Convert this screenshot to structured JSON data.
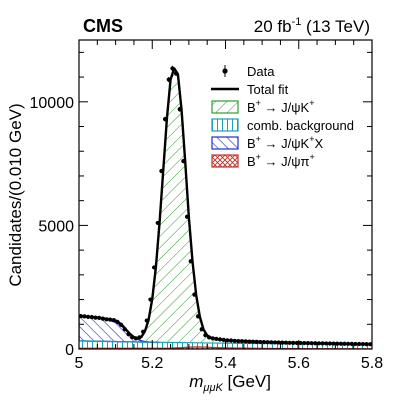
{
  "chart_data": {
    "type": "line",
    "experiment_label": "CMS",
    "luminosity_label": {
      "main": "20 fb",
      "superscript": "-1",
      "rest": " (13 TeV)"
    },
    "xlabel": {
      "var": "m",
      "subscript": "μμK",
      "unit": " [GeV]"
    },
    "ylabel": "Candidates/(0.010 GeV)",
    "xlim": [
      5.0,
      5.8
    ],
    "ylim": [
      0,
      12500
    ],
    "x_ticks": [
      5.0,
      5.2,
      5.4,
      5.6,
      5.8
    ],
    "x_tick_labels": [
      "5",
      "5.2",
      "5.4",
      "5.6",
      "5.8"
    ],
    "y_ticks": [
      0,
      5000,
      10000
    ],
    "y_tick_labels": [
      "0",
      "5000",
      "10000"
    ],
    "legend_position": "top-right",
    "legend": [
      {
        "id": "data",
        "style": "marker",
        "color": "#000000",
        "parts": [
          [
            "Data",
            ""
          ]
        ]
      },
      {
        "id": "fit",
        "style": "line",
        "color": "#000000",
        "parts": [
          [
            "Total fit",
            ""
          ]
        ]
      },
      {
        "id": "sig",
        "style": "hatch",
        "color": "#2ca02c",
        "parts": [
          [
            "B",
            ""
          ],
          [
            "+",
            "sup"
          ],
          [
            " → J/ψK",
            ""
          ],
          [
            "+",
            "sup"
          ]
        ]
      },
      {
        "id": "comb",
        "style": "vlines",
        "color": "#17a2b8",
        "parts": [
          [
            "comb. background",
            ""
          ]
        ]
      },
      {
        "id": "partial",
        "style": "hatch",
        "color": "#1f2fd0",
        "parts": [
          [
            "B",
            ""
          ],
          [
            "+",
            "sup"
          ],
          [
            " → J/ψK",
            ""
          ],
          [
            "+",
            "sup"
          ],
          [
            "X",
            ""
          ]
        ]
      },
      {
        "id": "pi",
        "style": "cross",
        "color": "#c0302a",
        "parts": [
          [
            "B",
            ""
          ],
          [
            "+",
            "sup"
          ],
          [
            " → J/ψπ",
            ""
          ],
          [
            "+",
            "sup"
          ]
        ]
      }
    ],
    "series": [
      {
        "name": "Data",
        "x": [
          5.005,
          5.015,
          5.025,
          5.035,
          5.045,
          5.055,
          5.065,
          5.075,
          5.085,
          5.095,
          5.105,
          5.115,
          5.125,
          5.135,
          5.145,
          5.155,
          5.165,
          5.175,
          5.185,
          5.195,
          5.205,
          5.215,
          5.225,
          5.235,
          5.245,
          5.255,
          5.265,
          5.275,
          5.285,
          5.295,
          5.305,
          5.315,
          5.325,
          5.335,
          5.345,
          5.355,
          5.365,
          5.375,
          5.385,
          5.395,
          5.405,
          5.415,
          5.425,
          5.435,
          5.445,
          5.455,
          5.465,
          5.475,
          5.485,
          5.495,
          5.505,
          5.515,
          5.525,
          5.535,
          5.545,
          5.555,
          5.565,
          5.575,
          5.585,
          5.595,
          5.605,
          5.615,
          5.625,
          5.635,
          5.645,
          5.655,
          5.665,
          5.675,
          5.685,
          5.695,
          5.705,
          5.715,
          5.725,
          5.735,
          5.745,
          5.755,
          5.765,
          5.775,
          5.785,
          5.795
        ],
        "y": [
          1330,
          1320,
          1300,
          1290,
          1270,
          1260,
          1230,
          1200,
          1190,
          1170,
          1100,
          980,
          800,
          600,
          480,
          430,
          470,
          700,
          1150,
          2000,
          3300,
          5100,
          7200,
          9300,
          10900,
          11350,
          11150,
          9700,
          7600,
          5350,
          3550,
          2200,
          1320,
          800,
          560,
          470,
          430,
          410,
          390,
          370,
          350,
          345,
          330,
          320,
          315,
          310,
          300,
          295,
          290,
          285,
          280,
          275,
          270,
          265,
          262,
          258,
          255,
          250,
          248,
          245,
          242,
          240,
          238,
          235,
          232,
          230,
          228,
          225,
          222,
          220,
          218,
          215,
          212,
          210,
          208,
          205,
          202,
          200,
          198,
          195
        ]
      },
      {
        "name": "Total fit",
        "x": [
          5.0,
          5.02,
          5.04,
          5.06,
          5.08,
          5.1,
          5.11,
          5.12,
          5.13,
          5.14,
          5.15,
          5.16,
          5.17,
          5.18,
          5.19,
          5.2,
          5.21,
          5.22,
          5.23,
          5.24,
          5.25,
          5.26,
          5.27,
          5.28,
          5.29,
          5.3,
          5.31,
          5.32,
          5.33,
          5.34,
          5.35,
          5.36,
          5.38,
          5.4,
          5.45,
          5.5,
          5.55,
          5.6,
          5.65,
          5.7,
          5.75,
          5.8
        ],
        "y": [
          1330,
          1310,
          1280,
          1250,
          1210,
          1150,
          1060,
          930,
          760,
          600,
          480,
          430,
          480,
          720,
          1180,
          2020,
          3320,
          5120,
          7220,
          9320,
          10900,
          11350,
          11120,
          9680,
          7580,
          5330,
          3530,
          2180,
          1300,
          790,
          550,
          460,
          390,
          350,
          320,
          290,
          265,
          245,
          230,
          215,
          200,
          185
        ]
      },
      {
        "name": "comb. background",
        "x": [
          5.0,
          5.1,
          5.2,
          5.3,
          5.4,
          5.5,
          5.6,
          5.7,
          5.8
        ],
        "y": [
          330,
          300,
          275,
          255,
          235,
          220,
          205,
          192,
          180
        ]
      },
      {
        "name": "B+ → J/ψK+X",
        "x": [
          5.0,
          5.04,
          5.08,
          5.1,
          5.11,
          5.12,
          5.13,
          5.14,
          5.15,
          5.16,
          5.17,
          5.18,
          5.19,
          5.2,
          5.22
        ],
        "y": [
          980,
          950,
          870,
          780,
          700,
          580,
          450,
          320,
          200,
          110,
          50,
          20,
          8,
          0,
          0
        ]
      },
      {
        "name": "B+ → J/ψπ+",
        "x": [
          5.0,
          5.25,
          5.28,
          5.3,
          5.32,
          5.34,
          5.36,
          5.4,
          5.5,
          5.6,
          5.8
        ],
        "y": [
          30,
          35,
          55,
          75,
          85,
          80,
          65,
          45,
          25,
          15,
          8
        ]
      }
    ]
  }
}
